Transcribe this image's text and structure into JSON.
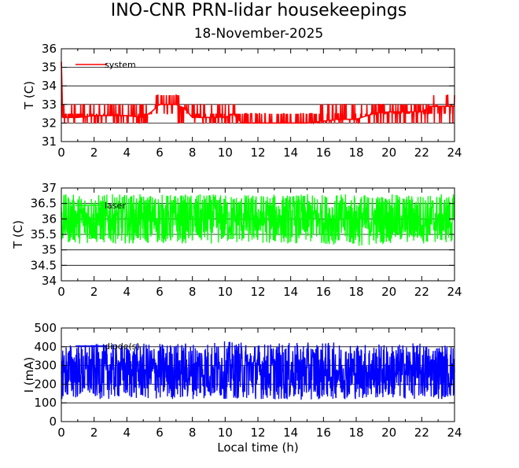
{
  "title": "INO-CNR PRN-lidar housekeepings",
  "subtitle": "18-November-2025",
  "xlabel": "Local time (h)",
  "chart_data": [
    {
      "type": "line",
      "ylabel": "T (C)",
      "xlim": [
        0,
        24
      ],
      "ylim": [
        31,
        36
      ],
      "xticks": [
        0,
        2,
        4,
        6,
        8,
        10,
        12,
        14,
        16,
        18,
        20,
        22,
        24
      ],
      "yticks": [
        31,
        32,
        33,
        34,
        35,
        36
      ],
      "ytick_labels": [
        "31",
        "32",
        "33",
        "34",
        "35",
        "36"
      ],
      "grid": true,
      "series": [
        {
          "name": "system",
          "color": "#ff0000",
          "x": [
            0,
            1,
            2,
            3,
            4,
            5,
            5.5,
            6,
            6.5,
            7,
            7.5,
            8,
            9,
            10,
            10.5,
            11,
            12,
            13,
            14,
            15,
            16,
            17,
            18,
            19,
            20,
            21,
            22,
            22.5,
            23,
            24
          ],
          "y": [
            32.3,
            32.3,
            32.4,
            32.4,
            32.4,
            32.3,
            32.6,
            33.0,
            33.0,
            33.0,
            32.8,
            32.3,
            32.3,
            32.3,
            32.5,
            32.0,
            32.0,
            32.0,
            32.0,
            32.0,
            32.1,
            32.2,
            32.2,
            32.5,
            32.6,
            32.6,
            32.6,
            32.9,
            32.9,
            32.9
          ],
          "range_low": [
            31.6,
            31.6,
            31.6,
            31.6,
            31.6,
            31.6,
            32.0,
            32.2,
            32.2,
            32.0,
            31.6,
            31.6,
            31.6,
            31.6,
            31.8,
            31.6,
            31.6,
            31.6,
            31.6,
            31.6,
            31.6,
            31.6,
            31.6,
            31.6,
            31.6,
            31.6,
            31.6,
            32.0,
            32.0,
            32.0
          ],
          "range_high": [
            33.1,
            33.1,
            33.1,
            33.1,
            33.1,
            33.1,
            33.4,
            33.7,
            33.7,
            33.7,
            33.1,
            33.1,
            33.1,
            33.1,
            33.1,
            32.6,
            32.6,
            32.6,
            32.6,
            32.6,
            33.1,
            33.1,
            33.1,
            33.1,
            33.1,
            33.1,
            33.1,
            33.7,
            33.7,
            33.7
          ],
          "start_spike": 35.3
        }
      ]
    },
    {
      "type": "line",
      "ylabel": "T (C)",
      "xlim": [
        0,
        24
      ],
      "ylim": [
        34,
        37
      ],
      "xticks": [
        0,
        2,
        4,
        6,
        8,
        10,
        12,
        14,
        16,
        18,
        20,
        22,
        24
      ],
      "yticks": [
        34,
        34.5,
        35,
        35.5,
        36,
        36.5,
        37
      ],
      "ytick_labels": [
        "34",
        "34.5",
        "35",
        "35.5",
        "36",
        "36.5",
        "37"
      ],
      "grid": true,
      "series": [
        {
          "name": "laser",
          "color": "#00ff00",
          "x": [
            0,
            2,
            4,
            6,
            8,
            10,
            12,
            14,
            16,
            18,
            20,
            22,
            24
          ],
          "y": [
            36.0,
            36.0,
            36.0,
            36.0,
            36.0,
            36.0,
            36.0,
            36.0,
            36.0,
            36.0,
            36.0,
            36.0,
            36.0
          ],
          "range_low": [
            35.2,
            35.2,
            35.2,
            35.2,
            35.2,
            35.2,
            35.2,
            35.2,
            35.2,
            35.1,
            35.2,
            35.2,
            35.2
          ],
          "range_high": [
            36.8,
            36.8,
            36.8,
            36.8,
            36.8,
            36.8,
            36.8,
            36.8,
            36.8,
            36.8,
            36.8,
            36.8,
            36.8
          ]
        }
      ]
    },
    {
      "type": "line",
      "ylabel": "I (mA)",
      "xlim": [
        0,
        24
      ],
      "ylim": [
        0,
        500
      ],
      "xticks": [
        0,
        2,
        4,
        6,
        8,
        10,
        12,
        14,
        16,
        18,
        20,
        22,
        24
      ],
      "yticks": [
        0,
        100,
        200,
        300,
        400,
        500
      ],
      "ytick_labels": [
        "0",
        "100",
        "200",
        "300",
        "400",
        "500"
      ],
      "grid": true,
      "series": [
        {
          "name": "diode(s)",
          "color": "#0000ff",
          "x": [
            0,
            2,
            4,
            6,
            8,
            10,
            12,
            14,
            16,
            18,
            20,
            22,
            24
          ],
          "y": [
            270,
            270,
            270,
            270,
            270,
            270,
            270,
            270,
            270,
            270,
            270,
            270,
            270
          ],
          "range_low": [
            120,
            120,
            120,
            115,
            120,
            120,
            120,
            110,
            120,
            120,
            120,
            120,
            120
          ],
          "range_high": [
            420,
            415,
            415,
            420,
            425,
            430,
            420,
            420,
            425,
            420,
            415,
            420,
            415
          ]
        }
      ]
    }
  ]
}
